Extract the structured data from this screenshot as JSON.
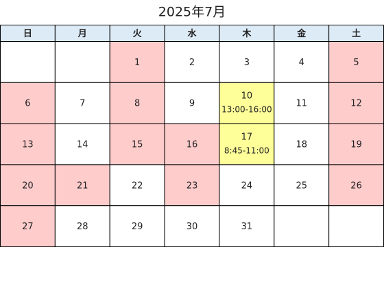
{
  "title": "2025年7月",
  "weekdays": [
    {
      "label": "日",
      "color": "#ff0000"
    },
    {
      "label": "月",
      "color": "#000000"
    },
    {
      "label": "火",
      "color": "#000000"
    },
    {
      "label": "水",
      "color": "#000000"
    },
    {
      "label": "木",
      "color": "#000000"
    },
    {
      "label": "金",
      "color": "#000000"
    },
    {
      "label": "土",
      "color": "#1f4fd1"
    }
  ],
  "header_fill": "#ddebf7",
  "weeks": [
    [
      null,
      null,
      {
        "day": 1,
        "fill": "#ffcccc"
      },
      {
        "day": 2
      },
      {
        "day": 3
      },
      {
        "day": 4
      },
      {
        "day": 5,
        "fill": "#ffcccc"
      }
    ],
    [
      {
        "day": 6,
        "fill": "#ffcccc"
      },
      {
        "day": 7
      },
      {
        "day": 8,
        "fill": "#ffcccc"
      },
      {
        "day": 9
      },
      {
        "day": 10,
        "time": "13:00-16:00",
        "fill": "#ffff99"
      },
      {
        "day": 11
      },
      {
        "day": 12,
        "fill": "#ffcccc"
      }
    ],
    [
      {
        "day": 13,
        "fill": "#ffcccc"
      },
      {
        "day": 14
      },
      {
        "day": 15,
        "fill": "#ffcccc"
      },
      {
        "day": 16,
        "fill": "#ffcccc"
      },
      {
        "day": 17,
        "time": "8:45-11:00",
        "fill": "#ffff99"
      },
      {
        "day": 18
      },
      {
        "day": 19,
        "fill": "#ffcccc"
      }
    ],
    [
      {
        "day": 20,
        "fill": "#ffcccc"
      },
      {
        "day": 21,
        "fill": "#ffcccc"
      },
      {
        "day": 22
      },
      {
        "day": 23,
        "fill": "#ffcccc"
      },
      {
        "day": 24
      },
      {
        "day": 25
      },
      {
        "day": 26,
        "fill": "#ffcccc"
      }
    ],
    [
      {
        "day": 27,
        "fill": "#ffcccc"
      },
      {
        "day": 28
      },
      {
        "day": 29
      },
      {
        "day": 30
      },
      {
        "day": 31
      },
      null,
      null
    ]
  ]
}
